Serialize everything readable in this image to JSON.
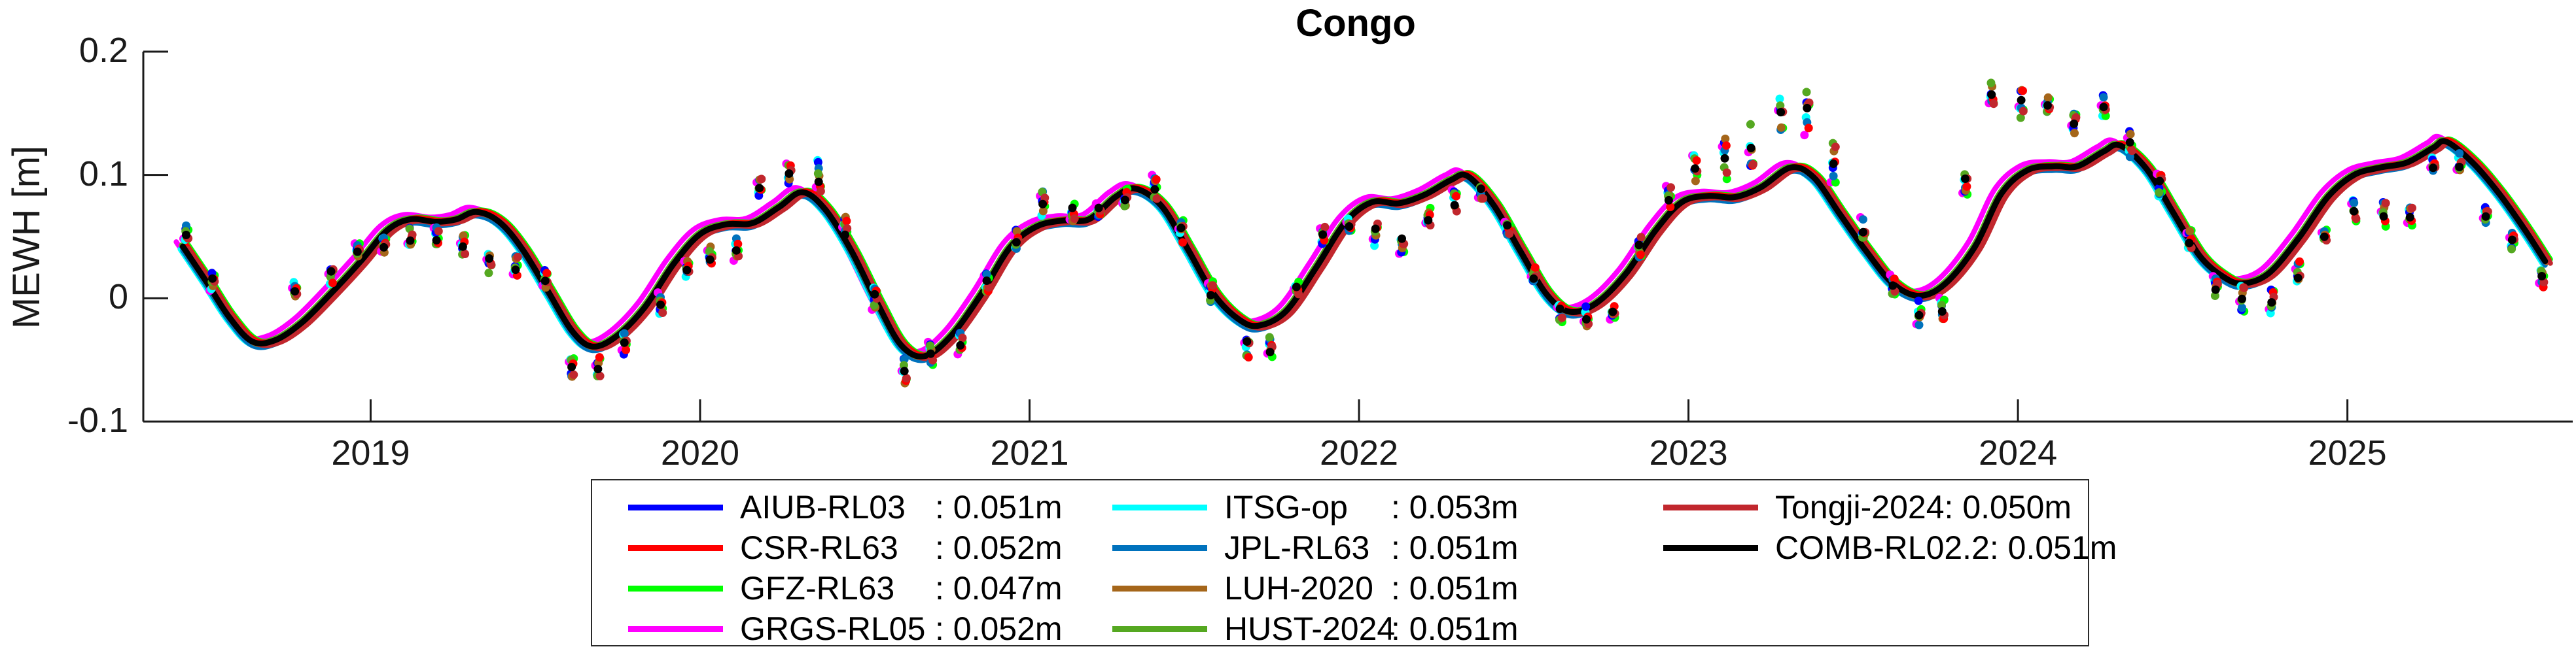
{
  "title": "Congo",
  "colors": {
    "background": "#FFFFFF",
    "axis": "#1a1a1a",
    "legend_border": "#2a2a2a",
    "tick_text": "#1a1a1a"
  },
  "chart_data": {
    "type": "line+scatter",
    "title": "Congo",
    "ylabel": "MEWH [m]",
    "xlabel": "",
    "grid": false,
    "legend_position": "bottom",
    "xlim": [
      2018.31,
      2025.67
    ],
    "ylim": [
      -0.1,
      0.2
    ],
    "x_ticks": [
      {
        "value": 2019,
        "label": "2019"
      },
      {
        "value": 2020,
        "label": "2020"
      },
      {
        "value": 2021,
        "label": "2021"
      },
      {
        "value": 2022,
        "label": "2022"
      },
      {
        "value": 2023,
        "label": "2023"
      },
      {
        "value": 2024,
        "label": "2024"
      },
      {
        "value": 2025,
        "label": "2025"
      }
    ],
    "y_ticks": [
      {
        "value": 0.2,
        "label": "0.2"
      },
      {
        "value": 0.1,
        "label": "0.1"
      },
      {
        "value": 0,
        "label": "0"
      },
      {
        "value": -0.1,
        "label": "-0.1"
      }
    ],
    "series": [
      {
        "name": "AIUB-RL03",
        "rms": "0.051m",
        "value_label": ": 0.051m",
        "color": "#0000FF",
        "dx": -2,
        "dy": -1,
        "lw": 8,
        "col": 0,
        "row": 0,
        "name_pad": 298
      },
      {
        "name": "CSR-RL63",
        "rms": "0.052m",
        "value_label": ": 0.052m",
        "color": "#FF0000",
        "dx": 6,
        "dy": -2,
        "lw": 8,
        "col": 0,
        "row": 1,
        "name_pad": 298
      },
      {
        "name": "GFZ-RL63",
        "rms": "0.047m",
        "value_label": ": 0.047m",
        "color": "#00FF00",
        "dx": 8,
        "dy": -3,
        "lw": 8,
        "col": 0,
        "row": 2,
        "name_pad": 298
      },
      {
        "name": "GRGS-RL05",
        "rms": "0.052m",
        "value_label": ": 0.052m",
        "color": "#FF00FF",
        "dx": -10,
        "dy": -7,
        "lw": 8,
        "col": 0,
        "row": 3,
        "name_pad": 298
      },
      {
        "name": "ITSG-op",
        "rms": "0.053m",
        "value_label": ": 0.053m",
        "color": "#00FFFF",
        "dx": -4,
        "dy": 4,
        "lw": 8,
        "col": 1,
        "row": 0,
        "name_pad": 255
      },
      {
        "name": "JPL-RL63",
        "rms": "0.051m",
        "value_label": ": 0.051m",
        "color": "#0072BD",
        "dx": 0,
        "dy": 6,
        "lw": 8,
        "col": 1,
        "row": 1,
        "name_pad": 255
      },
      {
        "name": "LUH-2020",
        "rms": "0.051m",
        "value_label": ": 0.051m",
        "color": "#A5661A",
        "dx": 2,
        "dy": 2,
        "lw": 8,
        "col": 1,
        "row": 2,
        "name_pad": 255
      },
      {
        "name": "HUST-2024",
        "rms": "0.051m",
        "value_label": ": 0.051m",
        "color": "#55A821",
        "dx": -2,
        "dy": -2,
        "lw": 8,
        "col": 1,
        "row": 3,
        "name_pad": 255
      },
      {
        "name": "Tongji-2024",
        "rms": "0.050m",
        "value_label": ": 0.050m",
        "color": "#C1272D",
        "dx": 8,
        "dy": 3,
        "lw": 8,
        "col": 2,
        "row": 0,
        "name_pad": 0
      },
      {
        "name": "COMB-RL02.2",
        "rms": "0.051m",
        "value_label": ": 0.051m",
        "color": "#000000",
        "dx": 0,
        "dy": 0,
        "lw": 9,
        "col": 2,
        "row": 1,
        "name_pad": 0
      }
    ],
    "draw_order": [
      3,
      4,
      2,
      0,
      5,
      6,
      7,
      1,
      8,
      9
    ],
    "mean_curve": [
      [
        2018.43,
        0.042
      ],
      [
        2018.5,
        0.014
      ],
      [
        2018.57,
        -0.015
      ],
      [
        2018.64,
        -0.035
      ],
      [
        2018.71,
        -0.034
      ],
      [
        2018.79,
        -0.02
      ],
      [
        2018.88,
        0.004
      ],
      [
        2018.97,
        0.03
      ],
      [
        2019.05,
        0.055
      ],
      [
        2019.12,
        0.064
      ],
      [
        2019.2,
        0.062
      ],
      [
        2019.26,
        0.064
      ],
      [
        2019.32,
        0.07
      ],
      [
        2019.39,
        0.062
      ],
      [
        2019.46,
        0.04
      ],
      [
        2019.54,
        0.005
      ],
      [
        2019.61,
        -0.026
      ],
      [
        2019.67,
        -0.039
      ],
      [
        2019.74,
        -0.032
      ],
      [
        2019.83,
        -0.008
      ],
      [
        2019.92,
        0.028
      ],
      [
        2020.0,
        0.052
      ],
      [
        2020.08,
        0.06
      ],
      [
        2020.16,
        0.061
      ],
      [
        2020.24,
        0.074
      ],
      [
        2020.31,
        0.086
      ],
      [
        2020.38,
        0.072
      ],
      [
        2020.46,
        0.038
      ],
      [
        2020.54,
        -0.005
      ],
      [
        2020.61,
        -0.038
      ],
      [
        2020.68,
        -0.047
      ],
      [
        2020.76,
        -0.031
      ],
      [
        2020.85,
        0.002
      ],
      [
        2020.94,
        0.041
      ],
      [
        2021.02,
        0.058
      ],
      [
        2021.1,
        0.063
      ],
      [
        2021.18,
        0.064
      ],
      [
        2021.26,
        0.082
      ],
      [
        2021.32,
        0.089
      ],
      [
        2021.4,
        0.075
      ],
      [
        2021.48,
        0.04
      ],
      [
        2021.56,
        0.003
      ],
      [
        2021.64,
        -0.018
      ],
      [
        2021.7,
        -0.022
      ],
      [
        2021.78,
        -0.01
      ],
      [
        2021.87,
        0.025
      ],
      [
        2021.96,
        0.062
      ],
      [
        2022.04,
        0.078
      ],
      [
        2022.12,
        0.077
      ],
      [
        2022.2,
        0.084
      ],
      [
        2022.28,
        0.096
      ],
      [
        2022.33,
        0.099
      ],
      [
        2022.41,
        0.075
      ],
      [
        2022.49,
        0.038
      ],
      [
        2022.57,
        0.003
      ],
      [
        2022.64,
        -0.011
      ],
      [
        2022.72,
        -0.004
      ],
      [
        2022.81,
        0.02
      ],
      [
        2022.9,
        0.055
      ],
      [
        2022.98,
        0.078
      ],
      [
        2023.06,
        0.083
      ],
      [
        2023.14,
        0.082
      ],
      [
        2023.22,
        0.09
      ],
      [
        2023.31,
        0.106
      ],
      [
        2023.38,
        0.098
      ],
      [
        2023.46,
        0.068
      ],
      [
        2023.54,
        0.038
      ],
      [
        2023.62,
        0.012
      ],
      [
        2023.7,
        0.002
      ],
      [
        2023.78,
        0.012
      ],
      [
        2023.87,
        0.042
      ],
      [
        2023.95,
        0.085
      ],
      [
        2024.03,
        0.104
      ],
      [
        2024.11,
        0.107
      ],
      [
        2024.18,
        0.107
      ],
      [
        2024.26,
        0.119
      ],
      [
        2024.31,
        0.124
      ],
      [
        2024.39,
        0.105
      ],
      [
        2024.47,
        0.07
      ],
      [
        2024.55,
        0.035
      ],
      [
        2024.62,
        0.018
      ],
      [
        2024.68,
        0.012
      ],
      [
        2024.76,
        0.02
      ],
      [
        2024.85,
        0.048
      ],
      [
        2024.94,
        0.082
      ],
      [
        2025.02,
        0.1
      ],
      [
        2025.1,
        0.106
      ],
      [
        2025.18,
        0.11
      ],
      [
        2025.26,
        0.122
      ],
      [
        2025.3,
        0.127
      ],
      [
        2025.38,
        0.11
      ],
      [
        2025.46,
        0.085
      ],
      [
        2025.54,
        0.055
      ],
      [
        2025.6,
        0.03
      ]
    ],
    "scatter_clusters": [
      [
        2018.44,
        0.051,
        0.008
      ],
      [
        2018.52,
        0.014,
        0.008
      ],
      [
        2018.77,
        0.008,
        0.007
      ],
      [
        2018.88,
        0.019,
        0.008
      ],
      [
        2018.96,
        0.038,
        0.007
      ],
      [
        2019.04,
        0.043,
        0.007
      ],
      [
        2019.12,
        0.049,
        0.008
      ],
      [
        2019.2,
        0.048,
        0.01
      ],
      [
        2019.28,
        0.043,
        0.009
      ],
      [
        2019.36,
        0.03,
        0.01
      ],
      [
        2019.44,
        0.024,
        0.01
      ],
      [
        2019.53,
        0.013,
        0.01
      ],
      [
        2019.61,
        -0.055,
        0.011
      ],
      [
        2019.69,
        -0.058,
        0.012
      ],
      [
        2019.77,
        -0.037,
        0.01
      ],
      [
        2019.88,
        -0.004,
        0.009
      ],
      [
        2019.96,
        0.022,
        0.008
      ],
      [
        2020.03,
        0.033,
        0.009
      ],
      [
        2020.11,
        0.04,
        0.01
      ],
      [
        2020.18,
        0.09,
        0.007
      ],
      [
        2020.27,
        0.103,
        0.015
      ],
      [
        2020.36,
        0.098,
        0.014
      ],
      [
        2020.44,
        0.055,
        0.013
      ],
      [
        2020.53,
        0.0,
        0.01
      ],
      [
        2020.62,
        -0.058,
        0.012
      ],
      [
        2020.7,
        -0.044,
        0.011
      ],
      [
        2020.79,
        -0.037,
        0.012
      ],
      [
        2020.87,
        0.014,
        0.015
      ],
      [
        2020.96,
        0.048,
        0.009
      ],
      [
        2021.04,
        0.077,
        0.01
      ],
      [
        2021.13,
        0.072,
        0.01
      ],
      [
        2021.21,
        0.074,
        0.009
      ],
      [
        2021.29,
        0.082,
        0.009
      ],
      [
        2021.38,
        0.09,
        0.01
      ],
      [
        2021.46,
        0.055,
        0.012
      ],
      [
        2021.55,
        0.005,
        0.009
      ],
      [
        2021.66,
        -0.038,
        0.01
      ],
      [
        2021.73,
        -0.04,
        0.011
      ],
      [
        2021.81,
        0.01,
        0.007
      ],
      [
        2021.89,
        0.05,
        0.008
      ],
      [
        2021.97,
        0.058,
        0.008
      ],
      [
        2022.05,
        0.053,
        0.012
      ],
      [
        2022.13,
        0.047,
        0.012
      ],
      [
        2022.21,
        0.066,
        0.008
      ],
      [
        2022.29,
        0.076,
        0.012
      ],
      [
        2022.37,
        0.086,
        0.008
      ],
      [
        2022.45,
        0.058,
        0.008
      ],
      [
        2022.53,
        0.018,
        0.007
      ],
      [
        2022.61,
        -0.011,
        0.009
      ],
      [
        2022.69,
        -0.014,
        0.01
      ],
      [
        2022.77,
        -0.012,
        0.008
      ],
      [
        2022.85,
        0.042,
        0.01
      ],
      [
        2022.94,
        0.082,
        0.01
      ],
      [
        2023.02,
        0.105,
        0.012
      ],
      [
        2023.11,
        0.112,
        0.018
      ],
      [
        2023.19,
        0.125,
        0.018
      ],
      [
        2023.28,
        0.148,
        0.014
      ],
      [
        2023.36,
        0.15,
        0.018
      ],
      [
        2023.44,
        0.11,
        0.025
      ],
      [
        2023.53,
        0.056,
        0.01
      ],
      [
        2023.62,
        0.01,
        0.01
      ],
      [
        2023.7,
        -0.013,
        0.011
      ],
      [
        2023.77,
        -0.008,
        0.011
      ],
      [
        2023.84,
        0.094,
        0.01
      ],
      [
        2023.92,
        0.165,
        0.012
      ],
      [
        2024.01,
        0.158,
        0.012
      ],
      [
        2024.09,
        0.158,
        0.01
      ],
      [
        2024.17,
        0.141,
        0.009
      ],
      [
        2024.26,
        0.156,
        0.01
      ],
      [
        2024.34,
        0.125,
        0.012
      ],
      [
        2024.43,
        0.092,
        0.01
      ],
      [
        2024.52,
        0.048,
        0.01
      ],
      [
        2024.6,
        0.01,
        0.01
      ],
      [
        2024.68,
        0.0,
        0.011
      ],
      [
        2024.77,
        -0.003,
        0.01
      ],
      [
        2024.85,
        0.02,
        0.01
      ],
      [
        2024.93,
        0.05,
        0.008
      ],
      [
        2025.02,
        0.07,
        0.01
      ],
      [
        2025.11,
        0.068,
        0.011
      ],
      [
        2025.19,
        0.067,
        0.01
      ],
      [
        2025.26,
        0.108,
        0.008
      ],
      [
        2025.34,
        0.109,
        0.009
      ],
      [
        2025.42,
        0.068,
        0.009
      ],
      [
        2025.5,
        0.046,
        0.007
      ],
      [
        2025.59,
        0.016,
        0.007
      ]
    ]
  }
}
